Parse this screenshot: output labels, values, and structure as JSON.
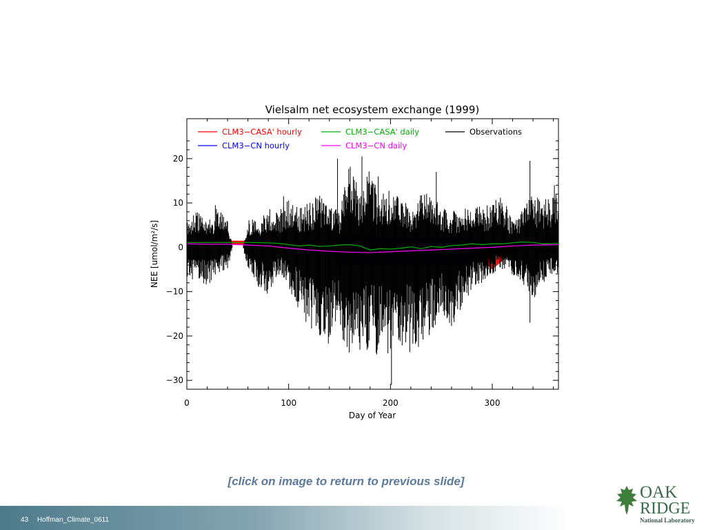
{
  "slide": {
    "link_text": "[click on image to return to previous slide]",
    "page_number": "43",
    "footer_label": "Hoffman_Climate_0611",
    "logo_line1": "OAK",
    "logo_line2": "RIDGE",
    "logo_line3": "National Laboratory"
  },
  "chart_data": {
    "type": "line",
    "title": "Vielsalm net ecosystem exchange (1999)",
    "xlabel": "Day of Year",
    "ylabel": "NEE [umol/m²/s]",
    "xlim": [
      0,
      365
    ],
    "ylim": [
      -32,
      29
    ],
    "xticks": [
      0,
      100,
      200,
      300
    ],
    "yticks": [
      -30,
      -20,
      -10,
      0,
      10,
      20
    ],
    "grid": false,
    "legend_position": "top",
    "series": [
      {
        "name": "CLM3-CASA' hourly",
        "color": "#ff0000",
        "envelope_days": [
          0,
          20,
          40,
          60,
          80,
          100,
          120,
          140,
          150,
          160,
          170,
          180,
          190,
          200,
          210,
          220,
          240,
          260,
          280,
          300,
          320,
          365
        ],
        "upper": [
          1.5,
          1.5,
          1.5,
          1.5,
          1.5,
          1.5,
          1.5,
          1.5,
          2.5,
          3.0,
          3.0,
          3.0,
          2.0,
          1.5,
          1.5,
          1.5,
          1.5,
          1.5,
          1.5,
          1.5,
          1.5,
          1.5
        ],
        "lower": [
          0.5,
          0.5,
          0.5,
          0.5,
          0.5,
          0.5,
          0.5,
          -0.5,
          -3.0,
          -4.0,
          -4.0,
          -4.0,
          -3.5,
          -2.0,
          -1.0,
          -1.0,
          -1.0,
          -1.0,
          -1.0,
          -5.0,
          -1.0,
          -0.5
        ]
      },
      {
        "name": "CLM3-CN hourly",
        "color": "#0000ff",
        "envelope_days": [
          140,
          150,
          160,
          170,
          180,
          190,
          200,
          210,
          220,
          230,
          240,
          250,
          260,
          270,
          280,
          290
        ],
        "upper": [
          1.0,
          2.0,
          2.0,
          2.0,
          2.0,
          2.0,
          2.0,
          2.0,
          2.0,
          2.0,
          2.0,
          2.0,
          2.0,
          2.0,
          1.5,
          1.0
        ],
        "lower": [
          -1.0,
          -4.0,
          -4.0,
          -4.0,
          -4.0,
          -4.0,
          -4.0,
          -4.0,
          -4.0,
          -4.0,
          -4.0,
          -4.0,
          -4.0,
          -4.0,
          -3.0,
          -1.5
        ]
      },
      {
        "name": "CLM3-CASA' daily",
        "color": "#00b000",
        "x": [
          0,
          20,
          40,
          60,
          80,
          90,
          100,
          110,
          120,
          130,
          140,
          150,
          160,
          170,
          180,
          190,
          200,
          210,
          220,
          230,
          240,
          250,
          260,
          270,
          280,
          290,
          300,
          310,
          320,
          330,
          340,
          350,
          365
        ],
        "y": [
          1.1,
          1.1,
          1.1,
          1.1,
          1.0,
          0.9,
          0.6,
          0.3,
          0.5,
          0.2,
          0.3,
          0.5,
          0.6,
          0.3,
          -0.6,
          -0.3,
          -0.4,
          -0.2,
          0.1,
          -0.3,
          0.2,
          0.0,
          0.4,
          0.5,
          0.8,
          0.6,
          0.8,
          0.8,
          1.0,
          1.2,
          1.1,
          0.8,
          0.9
        ]
      },
      {
        "name": "CLM3-CN daily",
        "color": "#ff00ff",
        "x": [
          0,
          20,
          40,
          60,
          80,
          100,
          120,
          140,
          160,
          180,
          200,
          220,
          240,
          260,
          280,
          300,
          320,
          340,
          365
        ],
        "y": [
          0.8,
          0.7,
          0.7,
          0.5,
          0.3,
          -0.2,
          -0.6,
          -0.9,
          -1.1,
          -1.2,
          -1.0,
          -0.8,
          -0.6,
          -0.4,
          -0.2,
          0.0,
          0.3,
          0.5,
          0.6
        ]
      },
      {
        "name": "Observations",
        "color": "#000000",
        "envelope_days": [
          0,
          10,
          20,
          30,
          40,
          45,
          55,
          60,
          70,
          80,
          90,
          100,
          110,
          120,
          130,
          140,
          150,
          160,
          170,
          180,
          190,
          200,
          210,
          220,
          230,
          240,
          250,
          260,
          270,
          280,
          290,
          300,
          310,
          320,
          330,
          340,
          350,
          365
        ],
        "upper": [
          7,
          8,
          6,
          9,
          6,
          0,
          0,
          7,
          6,
          9,
          8,
          11,
          9,
          10,
          12,
          10,
          8,
          20,
          12,
          18,
          12,
          13,
          11,
          9,
          12,
          13,
          9,
          8,
          9,
          10,
          9,
          10,
          12,
          6,
          9,
          12,
          11,
          13
        ],
        "lower": [
          -8,
          -7,
          -9,
          -6,
          -5,
          0,
          0,
          -5,
          -9,
          -11,
          -6,
          -9,
          -15,
          -18,
          -20,
          -22,
          -19,
          -25,
          -24,
          -23,
          -25,
          -26,
          -22,
          -24,
          -22,
          -20,
          -16,
          -18,
          -14,
          -10,
          -8,
          -6,
          -5,
          -7,
          -9,
          -12,
          -8,
          -6
        ],
        "spikes": [
          {
            "x": 28,
            "y": 9.5
          },
          {
            "x": 95,
            "y": 11.5
          },
          {
            "x": 148,
            "y": 20
          },
          {
            "x": 172,
            "y": 20.5
          },
          {
            "x": 188,
            "y": 16
          },
          {
            "x": 201,
            "y": -31
          },
          {
            "x": 245,
            "y": 17
          },
          {
            "x": 337,
            "y": 19.5
          },
          {
            "x": 337,
            "y": -17
          },
          {
            "x": 361,
            "y": 14
          }
        ]
      }
    ]
  }
}
